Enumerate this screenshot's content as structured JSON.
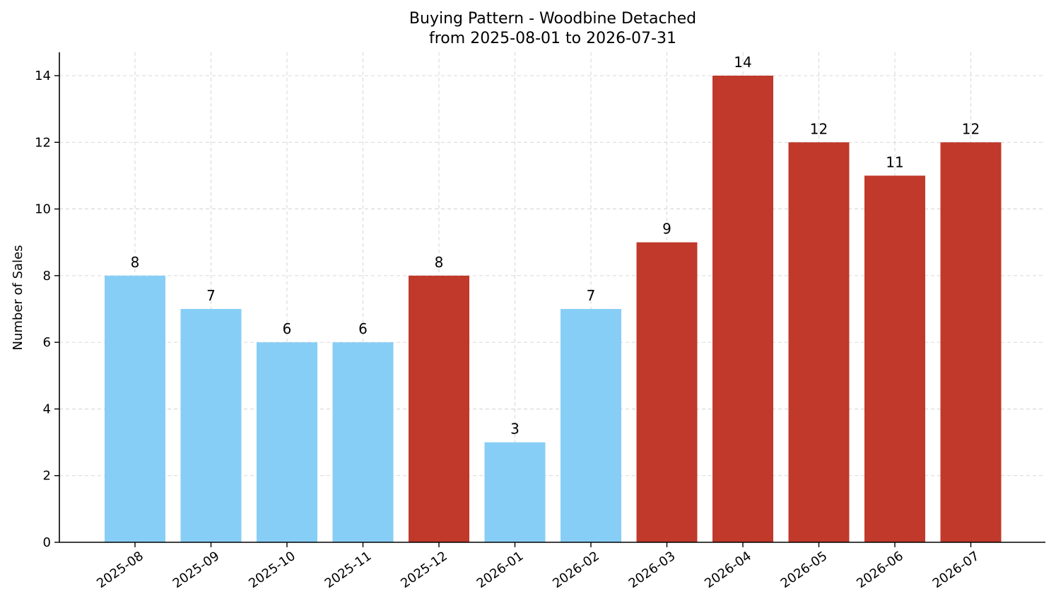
{
  "chart_data": {
    "type": "bar",
    "title": "Buying Pattern - Woodbine Detached",
    "subtitle": "from 2025-08-01 to 2026-07-31",
    "xlabel": "",
    "ylabel": "Number of Sales",
    "categories": [
      "2025-08",
      "2025-09",
      "2025-10",
      "2025-11",
      "2025-12",
      "2026-01",
      "2026-02",
      "2026-03",
      "2026-04",
      "2026-05",
      "2026-06",
      "2026-07"
    ],
    "values": [
      8,
      7,
      6,
      6,
      8,
      3,
      7,
      9,
      14,
      12,
      11,
      12
    ],
    "bar_colors": [
      "#87CEF7",
      "#87CEF7",
      "#87CEF7",
      "#87CEF7",
      "#C0392B",
      "#87CEF7",
      "#87CEF7",
      "#C0392B",
      "#C0392B",
      "#C0392B",
      "#C0392B",
      "#C0392B"
    ],
    "yticks": [
      0,
      2,
      4,
      6,
      8,
      10,
      12,
      14
    ],
    "ylim": [
      0,
      14.7
    ],
    "grid": true,
    "legend": "none",
    "show_data_labels": true
  }
}
